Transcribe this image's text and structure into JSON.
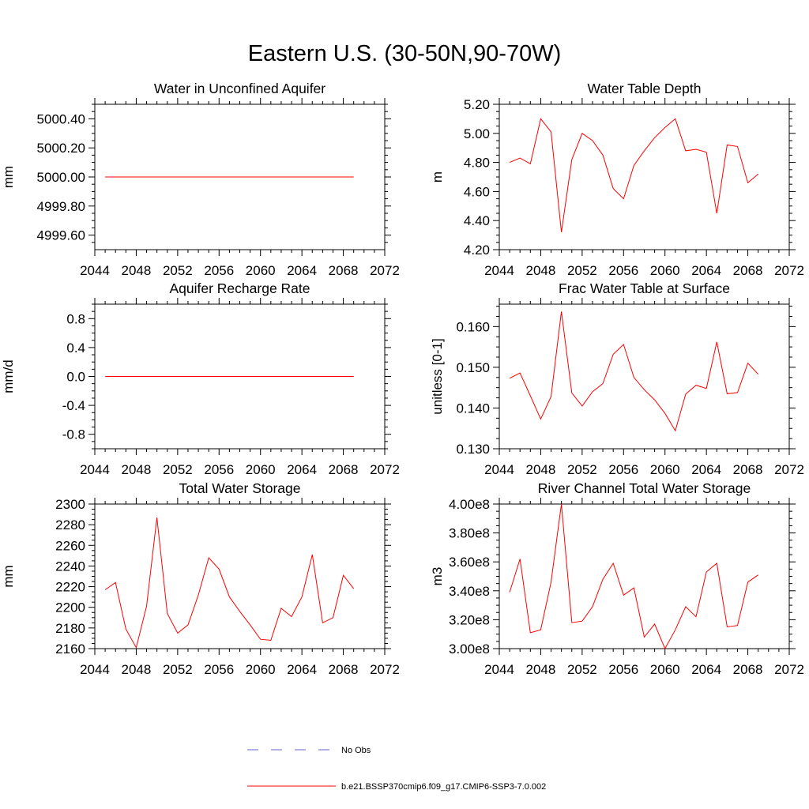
{
  "title": "Eastern U.S. (30-50N,90-70W)",
  "colors": {
    "series": "#ff0000",
    "obs": "#6666cc",
    "axis": "#000000"
  },
  "legend": [
    {
      "label": "No Obs",
      "color": "#6666cc",
      "style": "dashed"
    },
    {
      "label": "b.e21.BSSP370cmip6.f09_g17.CMIP6-SSP3-7.0.002",
      "color": "#ff0000",
      "style": "solid"
    }
  ],
  "chart_data": [
    {
      "type": "line",
      "title": "Water in Unconfined Aquifer",
      "ylabel": "mm",
      "xlim": [
        2044,
        2072
      ],
      "xticks": [
        2044,
        2048,
        2052,
        2056,
        2060,
        2064,
        2068,
        2072
      ],
      "ylim": [
        4999.5,
        5000.5
      ],
      "yticks": [
        4999.6,
        4999.8,
        5000.0,
        5000.2,
        5000.4
      ],
      "ytick_labels": [
        "4999.60",
        "4999.80",
        "5000.00",
        "5000.20",
        "5000.40"
      ],
      "x": [
        2045,
        2046,
        2047,
        2048,
        2049,
        2050,
        2051,
        2052,
        2053,
        2054,
        2055,
        2056,
        2057,
        2058,
        2059,
        2060,
        2061,
        2062,
        2063,
        2064,
        2065,
        2066,
        2067,
        2068,
        2069
      ],
      "series": [
        {
          "values": [
            5000,
            5000,
            5000,
            5000,
            5000,
            5000,
            5000,
            5000,
            5000,
            5000,
            5000,
            5000,
            5000,
            5000,
            5000,
            5000,
            5000,
            5000,
            5000,
            5000,
            5000,
            5000,
            5000,
            5000,
            5000
          ]
        }
      ]
    },
    {
      "type": "line",
      "title": "Water Table Depth",
      "ylabel": "m",
      "xlim": [
        2044,
        2072
      ],
      "xticks": [
        2044,
        2048,
        2052,
        2056,
        2060,
        2064,
        2068,
        2072
      ],
      "ylim": [
        4.2,
        5.2
      ],
      "yticks": [
        4.2,
        4.4,
        4.6,
        4.8,
        5.0,
        5.2
      ],
      "ytick_labels": [
        "4.20",
        "4.40",
        "4.60",
        "4.80",
        "5.00",
        "5.20"
      ],
      "x": [
        2045,
        2046,
        2047,
        2048,
        2049,
        2050,
        2051,
        2052,
        2053,
        2054,
        2055,
        2056,
        2057,
        2058,
        2059,
        2060,
        2061,
        2062,
        2063,
        2064,
        2065,
        2066,
        2067,
        2068,
        2069
      ],
      "series": [
        {
          "values": [
            4.8,
            4.83,
            4.79,
            5.1,
            5.01,
            4.32,
            4.82,
            5.0,
            4.95,
            4.85,
            4.62,
            4.55,
            4.78,
            4.88,
            4.97,
            5.04,
            5.1,
            4.88,
            4.89,
            4.87,
            4.45,
            4.92,
            4.91,
            4.66,
            4.72
          ]
        }
      ]
    },
    {
      "type": "line",
      "title": "Aquifer Recharge Rate",
      "ylabel": "mm/d",
      "xlim": [
        2044,
        2072
      ],
      "xticks": [
        2044,
        2048,
        2052,
        2056,
        2060,
        2064,
        2068,
        2072
      ],
      "ylim": [
        -1.0,
        1.0
      ],
      "yticks": [
        -0.8,
        -0.4,
        0.0,
        0.4,
        0.8
      ],
      "ytick_labels": [
        "-0.8",
        "-0.4",
        "0.0",
        "0.4",
        "0.8"
      ],
      "x": [
        2045,
        2046,
        2047,
        2048,
        2049,
        2050,
        2051,
        2052,
        2053,
        2054,
        2055,
        2056,
        2057,
        2058,
        2059,
        2060,
        2061,
        2062,
        2063,
        2064,
        2065,
        2066,
        2067,
        2068,
        2069
      ],
      "series": [
        {
          "values": [
            0,
            0,
            0,
            0,
            0,
            0,
            0,
            0,
            0,
            0,
            0,
            0,
            0,
            0,
            0,
            0,
            0,
            0,
            0,
            0,
            0,
            0,
            0,
            0,
            0
          ]
        }
      ]
    },
    {
      "type": "line",
      "title": "Frac Water Table at Surface",
      "ylabel": "unitless [0-1]",
      "xlim": [
        2044,
        2072
      ],
      "xticks": [
        2044,
        2048,
        2052,
        2056,
        2060,
        2064,
        2068,
        2072
      ],
      "ylim": [
        0.13,
        0.1655
      ],
      "yticks": [
        0.13,
        0.14,
        0.15,
        0.16
      ],
      "ytick_labels": [
        "0.130",
        "0.140",
        "0.150",
        "0.160"
      ],
      "x": [
        2045,
        2046,
        2047,
        2048,
        2049,
        2050,
        2051,
        2052,
        2053,
        2054,
        2055,
        2056,
        2057,
        2058,
        2059,
        2060,
        2061,
        2062,
        2063,
        2064,
        2065,
        2066,
        2067,
        2068,
        2069
      ],
      "series": [
        {
          "values": [
            0.1473,
            0.1486,
            0.143,
            0.1373,
            0.1428,
            0.1637,
            0.1437,
            0.1405,
            0.144,
            0.146,
            0.1532,
            0.1556,
            0.1475,
            0.1445,
            0.142,
            0.1387,
            0.1344,
            0.1434,
            0.1456,
            0.1448,
            0.1562,
            0.1435,
            0.1438,
            0.151,
            0.1483
          ]
        }
      ]
    },
    {
      "type": "line",
      "title": "Total Water Storage",
      "ylabel": "mm",
      "xlim": [
        2044,
        2072
      ],
      "xticks": [
        2044,
        2048,
        2052,
        2056,
        2060,
        2064,
        2068,
        2072
      ],
      "ylim": [
        2160,
        2300
      ],
      "yticks": [
        2160,
        2180,
        2200,
        2220,
        2240,
        2260,
        2280,
        2300
      ],
      "ytick_labels": [
        "2160",
        "2180",
        "2200",
        "2220",
        "2240",
        "2260",
        "2280",
        "2300"
      ],
      "x": [
        2045,
        2046,
        2047,
        2048,
        2049,
        2050,
        2051,
        2052,
        2053,
        2054,
        2055,
        2056,
        2057,
        2058,
        2059,
        2060,
        2061,
        2062,
        2063,
        2064,
        2065,
        2066,
        2067,
        2068,
        2069
      ],
      "series": [
        {
          "values": [
            2217,
            2224,
            2179,
            2161,
            2201,
            2287,
            2194,
            2175,
            2183,
            2212,
            2248,
            2237,
            2210,
            2196,
            2183,
            2169,
            2168,
            2199,
            2191,
            2210,
            2251,
            2185,
            2190,
            2231,
            2218
          ]
        }
      ]
    },
    {
      "type": "line",
      "title": "River Channel Total Water Storage",
      "ylabel": "m3",
      "xlim": [
        2044,
        2072
      ],
      "xticks": [
        2044,
        2048,
        2052,
        2056,
        2060,
        2064,
        2068,
        2072
      ],
      "ylim": [
        300000000,
        400000000
      ],
      "yticks": [
        300000000,
        320000000,
        340000000,
        360000000,
        380000000,
        400000000
      ],
      "ytick_labels": [
        "3.00e8",
        "3.20e8",
        "3.40e8",
        "3.60e8",
        "3.80e8",
        "4.00e8"
      ],
      "x": [
        2045,
        2046,
        2047,
        2048,
        2049,
        2050,
        2051,
        2052,
        2053,
        2054,
        2055,
        2056,
        2057,
        2058,
        2059,
        2060,
        2061,
        2062,
        2063,
        2064,
        2065,
        2066,
        2067,
        2068,
        2069
      ],
      "series": [
        {
          "values": [
            339000000,
            362000000,
            311000000,
            313000000,
            346000000,
            400000000,
            318000000,
            319000000,
            329000000,
            348000000,
            359000000,
            337000000,
            342000000,
            308000000,
            317000000,
            300000000,
            313000000,
            329000000,
            322000000,
            353000000,
            359000000,
            315000000,
            316000000,
            346000000,
            351000000
          ]
        }
      ]
    }
  ]
}
